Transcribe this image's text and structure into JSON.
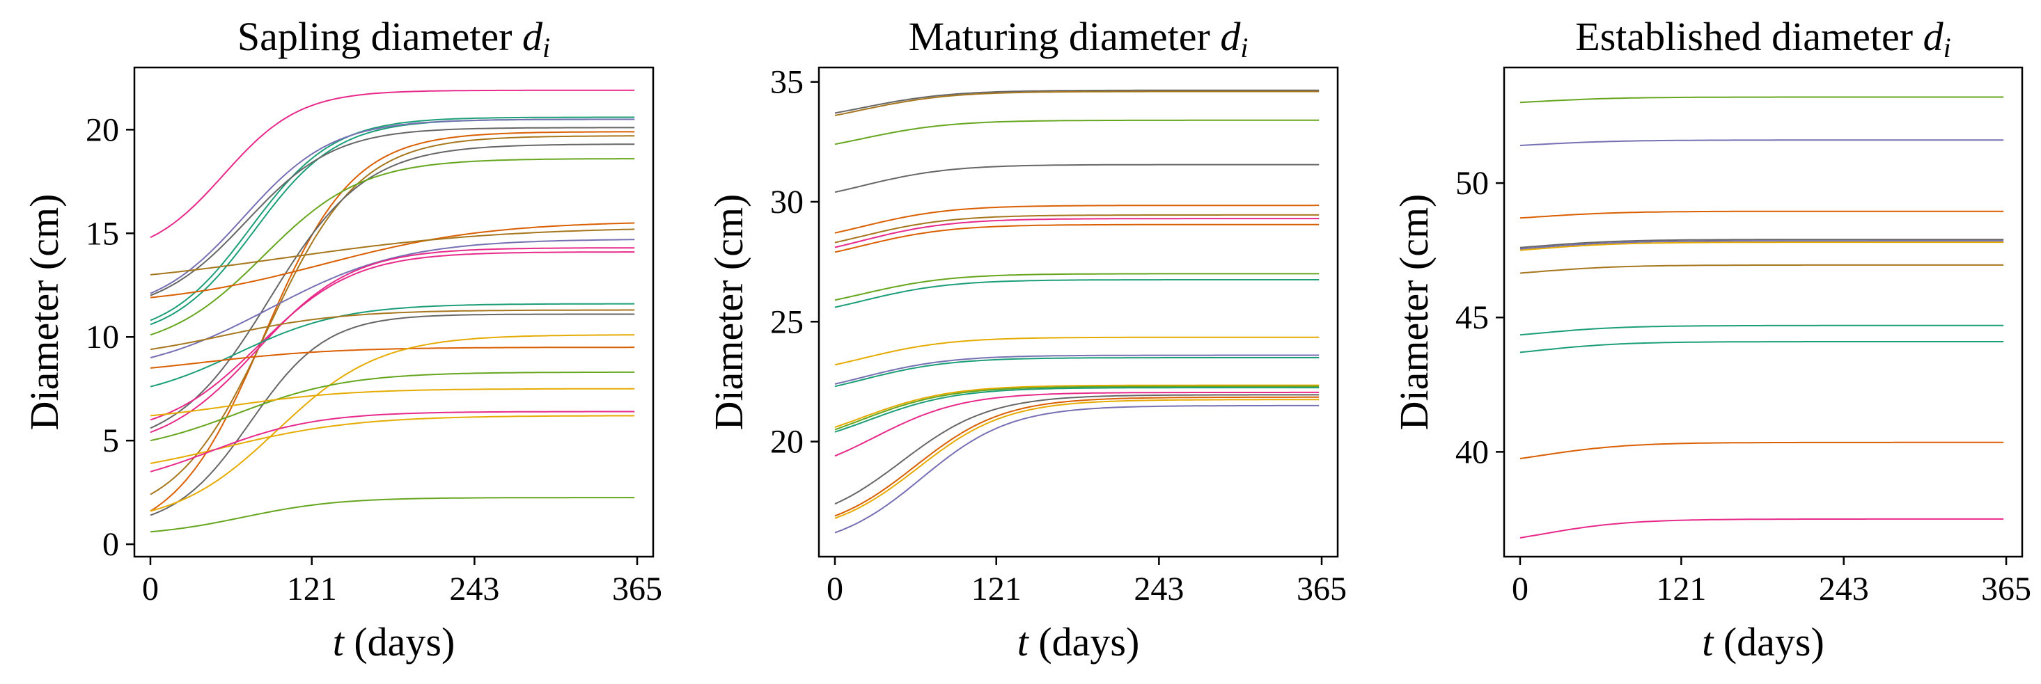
{
  "chart_data": [
    {
      "type": "line",
      "title_prefix": "Sapling diameter ",
      "title_var": "d",
      "title_sub": "i",
      "xlabel_var": "t",
      "xlabel_rest": " (days)",
      "ylabel": "Diameter (cm)",
      "xlim": [
        -12,
        377
      ],
      "ylim": [
        -0.6,
        23.0
      ],
      "xticks": [
        0,
        121,
        243,
        365
      ],
      "xtick_labels": [
        "0",
        "121",
        "243",
        "365"
      ],
      "yticks": [
        0,
        5,
        10,
        15,
        20
      ],
      "ytick_labels": [
        "0",
        "5",
        "10",
        "15",
        "20"
      ],
      "grid": false,
      "legend": "none",
      "series": [
        {
          "start": 14.8,
          "end": 21.9,
          "color": "#e7298a",
          "x50": 55,
          "k": 0.035
        },
        {
          "start": 10.8,
          "end": 20.6,
          "color": "#1b9e77",
          "x50": 75,
          "k": 0.032
        },
        {
          "start": 10.6,
          "end": 20.5,
          "color": "#1b9e77",
          "x50": 78,
          "k": 0.032
        },
        {
          "start": 12.1,
          "end": 20.5,
          "color": "#7570b3",
          "x50": 70,
          "k": 0.03
        },
        {
          "start": 12.0,
          "end": 20.1,
          "color": "#666666",
          "x50": 72,
          "k": 0.03
        },
        {
          "start": 1.6,
          "end": 19.9,
          "color": "#d95f02",
          "x50": 85,
          "k": 0.03
        },
        {
          "start": 2.4,
          "end": 19.7,
          "color": "#a6761d",
          "x50": 88,
          "k": 0.029
        },
        {
          "start": 5.6,
          "end": 19.3,
          "color": "#666666",
          "x50": 90,
          "k": 0.028
        },
        {
          "start": 10.1,
          "end": 18.6,
          "color": "#66a61e",
          "x50": 85,
          "k": 0.027
        },
        {
          "start": 11.9,
          "end": 15.5,
          "color": "#d95f02",
          "x50": 130,
          "k": 0.016
        },
        {
          "start": 13.0,
          "end": 15.2,
          "color": "#a6761d",
          "x50": 100,
          "k": 0.012
        },
        {
          "start": 9.0,
          "end": 14.7,
          "color": "#7570b3",
          "x50": 90,
          "k": 0.02
        },
        {
          "start": 5.4,
          "end": 14.3,
          "color": "#e7298a",
          "x50": 80,
          "k": 0.028
        },
        {
          "start": 6.0,
          "end": 14.1,
          "color": "#e7298a",
          "x50": 82,
          "k": 0.028
        },
        {
          "start": 7.6,
          "end": 11.6,
          "color": "#1b9e77",
          "x50": 65,
          "k": 0.025
        },
        {
          "start": 9.4,
          "end": 11.3,
          "color": "#a6761d",
          "x50": 55,
          "k": 0.022
        },
        {
          "start": 1.4,
          "end": 11.1,
          "color": "#666666",
          "x50": 75,
          "k": 0.035
        },
        {
          "start": 8.5,
          "end": 9.5,
          "color": "#d95f02",
          "x50": 40,
          "k": 0.02
        },
        {
          "start": 1.6,
          "end": 10.1,
          "color": "#e6ab02",
          "x50": 95,
          "k": 0.026
        },
        {
          "start": 5.0,
          "end": 8.3,
          "color": "#66a61e",
          "x50": 65,
          "k": 0.024
        },
        {
          "start": 6.2,
          "end": 7.5,
          "color": "#e6ab02",
          "x50": 60,
          "k": 0.022
        },
        {
          "start": 3.9,
          "end": 6.2,
          "color": "#e6ab02",
          "x50": 55,
          "k": 0.02
        },
        {
          "start": 3.5,
          "end": 6.4,
          "color": "#e7298a",
          "x50": 45,
          "k": 0.025
        },
        {
          "start": 0.6,
          "end": 2.25,
          "color": "#66a61e",
          "x50": 70,
          "k": 0.028
        }
      ]
    },
    {
      "type": "line",
      "title_prefix": "Maturing diameter ",
      "title_var": "d",
      "title_sub": "i",
      "xlabel_var": "t",
      "xlabel_rest": " (days)",
      "ylabel": "Diameter (cm)",
      "xlim": [
        -12,
        377
      ],
      "ylim": [
        15.2,
        35.6
      ],
      "xticks": [
        0,
        121,
        243,
        365
      ],
      "xtick_labels": [
        "0",
        "121",
        "243",
        "365"
      ],
      "yticks": [
        20,
        25,
        30,
        35
      ],
      "ytick_labels": [
        "20",
        "25",
        "30",
        "35"
      ],
      "grid": false,
      "legend": "none",
      "series": [
        {
          "start": 33.7,
          "end": 34.65,
          "color": "#666666",
          "x50": 20,
          "k": 0.03
        },
        {
          "start": 33.6,
          "end": 34.6,
          "color": "#a6761d",
          "x50": 20,
          "k": 0.03
        },
        {
          "start": 32.4,
          "end": 33.4,
          "color": "#66a61e",
          "x50": 20,
          "k": 0.03
        },
        {
          "start": 30.4,
          "end": 31.55,
          "color": "#666666",
          "x50": 20,
          "k": 0.03
        },
        {
          "start": 28.7,
          "end": 29.85,
          "color": "#d95f02",
          "x50": 20,
          "k": 0.03
        },
        {
          "start": 28.3,
          "end": 29.45,
          "color": "#a6761d",
          "x50": 20,
          "k": 0.03
        },
        {
          "start": 28.1,
          "end": 29.3,
          "color": "#e7298a",
          "x50": 20,
          "k": 0.03
        },
        {
          "start": 27.9,
          "end": 29.05,
          "color": "#d95f02",
          "x50": 20,
          "k": 0.03
        },
        {
          "start": 25.9,
          "end": 27.0,
          "color": "#66a61e",
          "x50": 20,
          "k": 0.03
        },
        {
          "start": 25.6,
          "end": 26.75,
          "color": "#1b9e77",
          "x50": 20,
          "k": 0.03
        },
        {
          "start": 23.2,
          "end": 24.35,
          "color": "#e6ab02",
          "x50": 20,
          "k": 0.03
        },
        {
          "start": 22.4,
          "end": 23.6,
          "color": "#7570b3",
          "x50": 20,
          "k": 0.03
        },
        {
          "start": 22.3,
          "end": 23.5,
          "color": "#1b9e77",
          "x50": 20,
          "k": 0.03
        },
        {
          "start": 20.6,
          "end": 22.35,
          "color": "#e6ab02",
          "x50": 20,
          "k": 0.03
        },
        {
          "start": 20.5,
          "end": 22.3,
          "color": "#66a61e",
          "x50": 20,
          "k": 0.03
        },
        {
          "start": 20.4,
          "end": 22.25,
          "color": "#1b9e77",
          "x50": 25,
          "k": 0.03
        },
        {
          "start": 19.4,
          "end": 22.05,
          "color": "#e7298a",
          "x50": 30,
          "k": 0.03
        },
        {
          "start": 17.4,
          "end": 21.95,
          "color": "#666666",
          "x50": 50,
          "k": 0.03
        },
        {
          "start": 16.9,
          "end": 21.85,
          "color": "#d95f02",
          "x50": 60,
          "k": 0.03
        },
        {
          "start": 16.8,
          "end": 21.75,
          "color": "#e6ab02",
          "x50": 62,
          "k": 0.03
        },
        {
          "start": 16.2,
          "end": 21.5,
          "color": "#7570b3",
          "x50": 65,
          "k": 0.03
        }
      ]
    },
    {
      "type": "line",
      "title_prefix": "Established diameter ",
      "title_var": "d",
      "title_sub": "i",
      "xlabel_var": "t",
      "xlabel_rest": " (days)",
      "ylabel": "Diameter (cm)",
      "xlim": [
        -12,
        377
      ],
      "ylim": [
        36.1,
        54.3
      ],
      "xticks": [
        0,
        121,
        243,
        365
      ],
      "xtick_labels": [
        "0",
        "121",
        "243",
        "365"
      ],
      "yticks": [
        40,
        45,
        50
      ],
      "ytick_labels": [
        "40",
        "45",
        "50"
      ],
      "grid": false,
      "legend": "none",
      "series": [
        {
          "start": 53.0,
          "end": 53.2,
          "color": "#66a61e",
          "x50": 10,
          "k": 0.03
        },
        {
          "start": 51.4,
          "end": 51.6,
          "color": "#7570b3",
          "x50": 10,
          "k": 0.03
        },
        {
          "start": 48.7,
          "end": 48.95,
          "color": "#d95f02",
          "x50": 10,
          "k": 0.03
        },
        {
          "start": 47.6,
          "end": 47.9,
          "color": "#666666",
          "x50": 10,
          "k": 0.03
        },
        {
          "start": 47.55,
          "end": 47.85,
          "color": "#7570b3",
          "x50": 10,
          "k": 0.03
        },
        {
          "start": 47.5,
          "end": 47.8,
          "color": "#e6ab02",
          "x50": 10,
          "k": 0.03
        },
        {
          "start": 46.65,
          "end": 46.95,
          "color": "#a6761d",
          "x50": 10,
          "k": 0.03
        },
        {
          "start": 44.35,
          "end": 44.7,
          "color": "#1b9e77",
          "x50": 10,
          "k": 0.03
        },
        {
          "start": 43.7,
          "end": 44.1,
          "color": "#1b9e77",
          "x50": 10,
          "k": 0.03
        },
        {
          "start": 39.75,
          "end": 40.35,
          "color": "#d95f02",
          "x50": 15,
          "k": 0.03
        },
        {
          "start": 36.8,
          "end": 37.5,
          "color": "#e7298a",
          "x50": 15,
          "k": 0.03
        }
      ]
    }
  ]
}
